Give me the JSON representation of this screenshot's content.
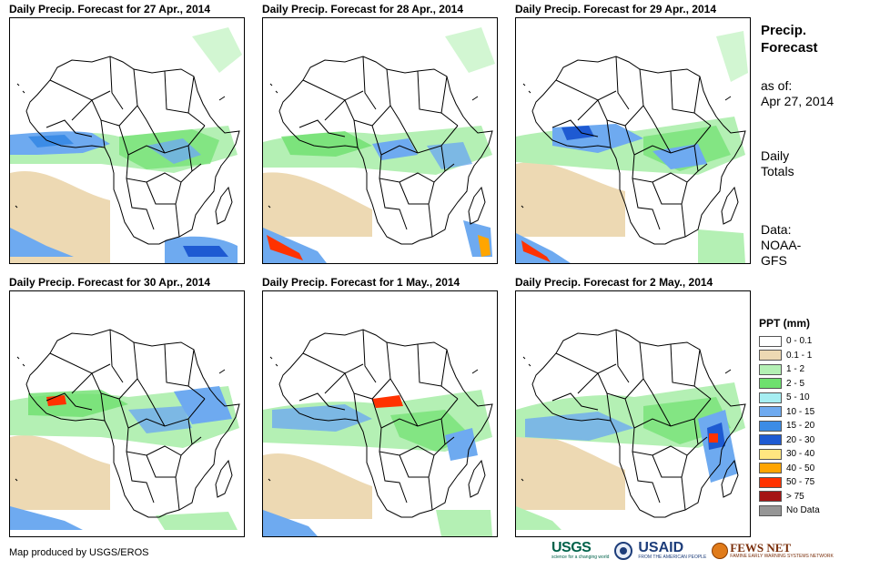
{
  "panels": [
    {
      "title": "Daily Precip. Forecast for 27 Apr., 2014"
    },
    {
      "title": "Daily Precip. Forecast for 28 Apr., 2014"
    },
    {
      "title": "Daily Precip. Forecast for 29 Apr., 2014"
    },
    {
      "title": "Daily Precip. Forecast for 30 Apr., 2014"
    },
    {
      "title": "Daily Precip. Forecast for 1 May., 2014"
    },
    {
      "title": "Daily Precip. Forecast for 2 May., 2014"
    }
  ],
  "side": {
    "title_line1": "Precip.",
    "title_line2": "Forecast",
    "asof_label": "as of:",
    "asof_date": "Apr 27, 2014",
    "totals_line1": "Daily",
    "totals_line2": "Totals",
    "data_line1": "Data:",
    "data_line2": "NOAA-",
    "data_line3": "GFS"
  },
  "legend": {
    "title": "PPT (mm)",
    "items": [
      {
        "label": "0 - 0.1",
        "color": "#ffffff"
      },
      {
        "label": "0.1 - 1",
        "color": "#edd9b3"
      },
      {
        "label": "1 - 2",
        "color": "#b4f0b4"
      },
      {
        "label": "2 - 5",
        "color": "#6ee06e"
      },
      {
        "label": "5 - 10",
        "color": "#a6eef2"
      },
      {
        "label": "10 - 15",
        "color": "#6eaaf0"
      },
      {
        "label": "15 - 20",
        "color": "#3c8ce6"
      },
      {
        "label": "20 - 30",
        "color": "#1e5ad2"
      },
      {
        "label": "30 - 40",
        "color": "#ffe680"
      },
      {
        "label": "40 - 50",
        "color": "#ffa500"
      },
      {
        "label": "50 - 75",
        "color": "#ff3200"
      },
      {
        "label": "> 75",
        "color": "#a51414"
      },
      {
        "label": "No Data",
        "color": "#969696"
      }
    ]
  },
  "footer": {
    "credit": "Map produced by USGS/EROS",
    "logo_usgs": "USGS",
    "logo_usgs_tagline": "science for a changing world",
    "logo_usaid": "USAID",
    "logo_usaid_tagline": "FROM THE AMERICAN PEOPLE",
    "logo_fews": "FEWS NET",
    "logo_fews_tagline": "FAMINE EARLY WARNING SYSTEMS NETWORK"
  }
}
